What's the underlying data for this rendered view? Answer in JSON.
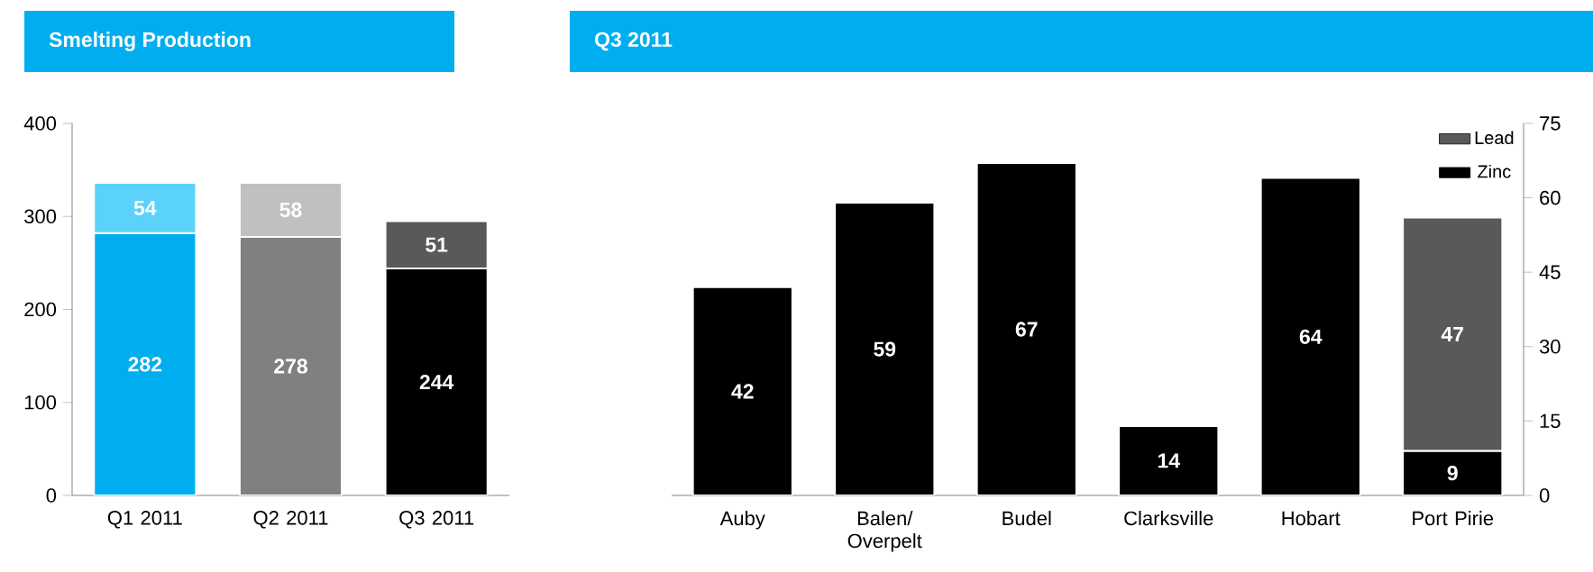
{
  "chart_data": [
    {
      "type": "bar",
      "title": "Smelting Production",
      "stacked": true,
      "data_labels": true,
      "categories": [
        "Q1 2011",
        "Q2 2011",
        "Q3 2011"
      ],
      "ylim": [
        0,
        400
      ],
      "yticks": [
        0,
        100,
        200,
        300,
        400
      ],
      "legend": false,
      "grid": false,
      "series": [
        {
          "colors": [
            "#00aeef",
            "#808080",
            "#000000"
          ],
          "values": [
            282,
            278,
            244
          ]
        },
        {
          "colors": [
            "#5bd2fa",
            "#c0c0c0",
            "#595959"
          ],
          "values": [
            54,
            58,
            51
          ]
        }
      ]
    },
    {
      "type": "bar",
      "title": "Q3 2011",
      "stacked": true,
      "data_labels": true,
      "categories": [
        "Auby",
        "Balen/ Overpelt",
        "Budel",
        "Clarksville",
        "Hobart",
        "Port Pirie"
      ],
      "ylim": [
        0,
        75
      ],
      "yticks": [
        0,
        15,
        30,
        45,
        60,
        75
      ],
      "legend": "top right",
      "grid": false,
      "series": [
        {
          "name": "Zinc",
          "color": "#000000",
          "values": [
            42,
            59,
            67,
            14,
            64,
            9
          ]
        },
        {
          "name": "Lead",
          "color": "#595959",
          "values": [
            null,
            null,
            null,
            null,
            null,
            47
          ]
        }
      ]
    }
  ]
}
